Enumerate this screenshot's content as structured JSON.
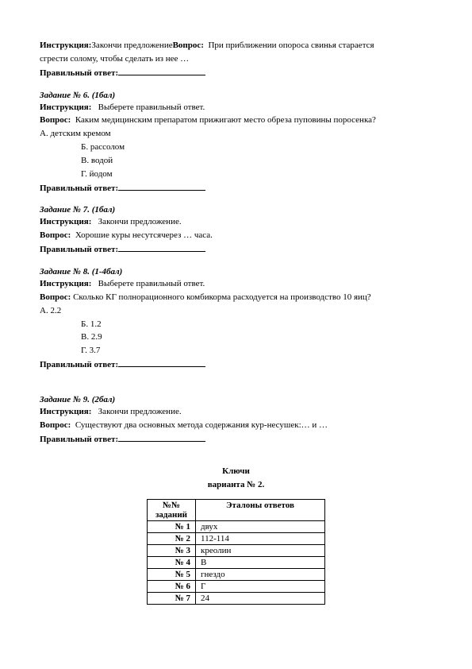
{
  "intro": {
    "instruction_label": "Инструкция:",
    "instruction_text": "Закончи предложение",
    "question_label": "Вопрос:",
    "question_text1": "При приближении опороса свинья старается",
    "question_text2": "сгрести солому, чтобы сделать из нее   …",
    "answer_label": "Правильный ответ:"
  },
  "task6": {
    "heading": "Задание   № 6. (1бал)",
    "instruction_label": "Инструкция:",
    "instruction_text": "Выберете правильный ответ.",
    "question_label": "Вопрос:",
    "question_text": "Каким медицинским препаратом  прижигают место обреза пуповины поросенка?",
    "opts": {
      "a": "А.   детским кремом",
      "b": "Б.   рассолом",
      "c": "В.   водой",
      "d": "Г.   йодом"
    },
    "answer_label": "Правильный ответ:"
  },
  "task7": {
    "heading": "Задание   № 7. (1бал)",
    "instruction_label": "Инструкция:",
    "instruction_text": "Закончи предложение.",
    "question_label": "Вопрос:",
    "question_text": "Хорошие куры несутсячерез  …  часа.",
    "answer_label": "Правильный ответ:"
  },
  "task8": {
    "heading": "Задание   № 8. (1-4бал)",
    "instruction_label": "Инструкция:",
    "instruction_text": "Выберете правильный ответ.",
    "question_label": "Вопрос:",
    "question_text": "Сколько  КГ полнорационного комбикорма  расходуется на производство 10 яиц?",
    "opts": {
      "a": "А.   2.2",
      "b": "Б.   1.2",
      "c": "В.   2.9",
      "d": "Г.   3.7"
    },
    "answer_label": "Правильный ответ:"
  },
  "task9": {
    "heading": "Задание   № 9. (2бал)",
    "instruction_label": "Инструкция:",
    "instruction_text": "Закончи предложение.",
    "question_label": "Вопрос:",
    "question_text": "Существуют два основных метода содержания кур-несушек:…   и …",
    "answer_label": "Правильный ответ:"
  },
  "keys": {
    "title1": "Ключи",
    "title2": "варианта № 2.",
    "col_num": "№№ заданий",
    "col_ans": "Эталоны ответов",
    "rows": [
      {
        "n": "№ 1",
        "a": "двух"
      },
      {
        "n": "№ 2",
        "a": "112-114"
      },
      {
        "n": "№ 3",
        "a": "креолин"
      },
      {
        "n": "№ 4",
        "a": "В"
      },
      {
        "n": "№ 5",
        "a": "гнездо"
      },
      {
        "n": "№ 6",
        "a": "Г"
      },
      {
        "n": "№ 7",
        "a": "24"
      }
    ]
  }
}
